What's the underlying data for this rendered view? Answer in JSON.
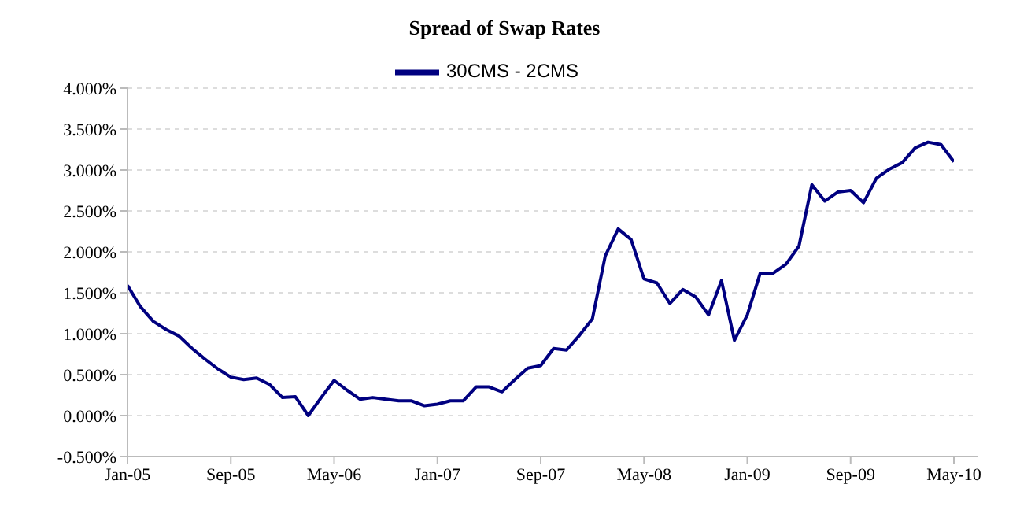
{
  "chart_data": {
    "type": "line",
    "title": "Spread of Swap Rates",
    "categories": [
      "Jan-05",
      null,
      null,
      null,
      null,
      null,
      null,
      null,
      "Sep-05",
      null,
      null,
      null,
      null,
      null,
      null,
      null,
      "May-06",
      null,
      null,
      null,
      null,
      null,
      null,
      null,
      "Jan-07",
      null,
      null,
      null,
      null,
      null,
      null,
      null,
      "Sep-07",
      null,
      null,
      null,
      null,
      null,
      null,
      null,
      "May-08",
      null,
      null,
      null,
      null,
      null,
      null,
      null,
      "Jan-09",
      null,
      null,
      null,
      null,
      null,
      null,
      null,
      "Sep-09",
      null,
      null,
      null,
      null,
      null,
      null,
      null,
      "May-10"
    ],
    "series": [
      {
        "name": "30CMS - 2CMS",
        "color": "#000080",
        "values": [
          1.59,
          1.33,
          1.15,
          1.05,
          0.97,
          0.82,
          0.69,
          0.57,
          0.47,
          0.44,
          0.46,
          0.38,
          0.22,
          0.23,
          0.0,
          0.22,
          0.43,
          0.31,
          0.2,
          0.22,
          0.2,
          0.18,
          0.18,
          0.12,
          0.14,
          0.18,
          0.18,
          0.35,
          0.35,
          0.29,
          0.44,
          0.58,
          0.61,
          0.82,
          0.8,
          0.98,
          1.18,
          1.95,
          2.28,
          2.15,
          1.67,
          1.62,
          1.37,
          1.54,
          1.45,
          1.23,
          1.65,
          0.92,
          1.23,
          1.74,
          1.74,
          1.85,
          2.07,
          2.82,
          2.62,
          2.73,
          2.75,
          2.6,
          2.9,
          3.01,
          3.09,
          3.27,
          3.34,
          3.31,
          3.1
        ]
      }
    ],
    "ylim": [
      -0.5,
      4
    ],
    "yticks": [
      {
        "value": -0.5,
        "label": "-0.500%"
      },
      {
        "value": 0,
        "label": "0.000%"
      },
      {
        "value": 0.5,
        "label": "0.500%"
      },
      {
        "value": 1,
        "label": "1.000%"
      },
      {
        "value": 1.5,
        "label": "1.500%"
      },
      {
        "value": 2,
        "label": "2.000%"
      },
      {
        "value": 2.5,
        "label": "2.500%"
      },
      {
        "value": 3,
        "label": "3.000%"
      },
      {
        "value": 3.5,
        "label": "3.500%"
      },
      {
        "value": 4,
        "label": "4.000%"
      }
    ],
    "grid": "y",
    "legend": "top",
    "marker": "none",
    "line_style": "solid"
  }
}
